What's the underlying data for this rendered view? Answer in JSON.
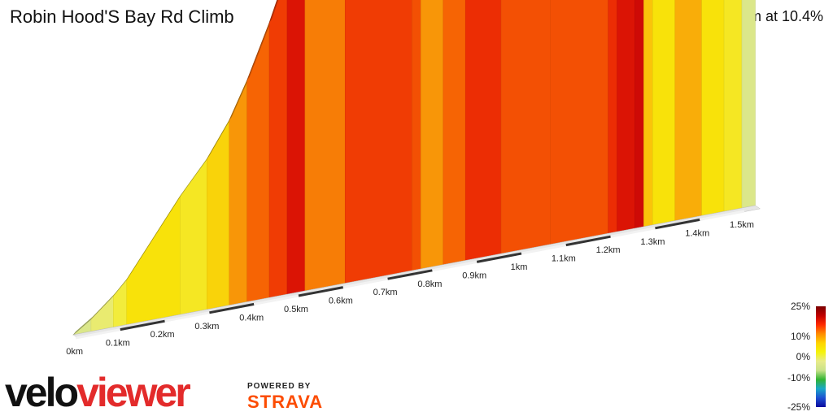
{
  "header": {
    "title": "Robin Hood'S Bay Rd Climb",
    "summary": "1.5 km at 10.4%"
  },
  "chart_data": {
    "type": "area",
    "title": "Robin Hood'S Bay Rd Climb",
    "xlabel": "",
    "ylabel": "",
    "x_tick_labels": [
      "0km",
      "0.1km",
      "0.2km",
      "0.3km",
      "0.4km",
      "0.5km",
      "0.6km",
      "0.7km",
      "0.8km",
      "0.9km",
      "1km",
      "1.1km",
      "1.2km",
      "1.3km",
      "1.4km",
      "1.5km"
    ],
    "segments": [
      {
        "start_km": 0.0,
        "end_km": 0.04,
        "grade_pct": 4
      },
      {
        "start_km": 0.04,
        "end_km": 0.09,
        "grade_pct": 5
      },
      {
        "start_km": 0.09,
        "end_km": 0.12,
        "grade_pct": 6
      },
      {
        "start_km": 0.12,
        "end_km": 0.24,
        "grade_pct": 8
      },
      {
        "start_km": 0.24,
        "end_km": 0.3,
        "grade_pct": 7
      },
      {
        "start_km": 0.3,
        "end_km": 0.35,
        "grade_pct": 9
      },
      {
        "start_km": 0.35,
        "end_km": 0.39,
        "grade_pct": 12
      },
      {
        "start_km": 0.39,
        "end_km": 0.44,
        "grade_pct": 14
      },
      {
        "start_km": 0.44,
        "end_km": 0.48,
        "grade_pct": 16
      },
      {
        "start_km": 0.48,
        "end_km": 0.52,
        "grade_pct": 19
      },
      {
        "start_km": 0.52,
        "end_km": 0.61,
        "grade_pct": 13
      },
      {
        "start_km": 0.61,
        "end_km": 0.76,
        "grade_pct": 16
      },
      {
        "start_km": 0.76,
        "end_km": 0.78,
        "grade_pct": 15
      },
      {
        "start_km": 0.78,
        "end_km": 0.83,
        "grade_pct": 12
      },
      {
        "start_km": 0.83,
        "end_km": 0.88,
        "grade_pct": 14
      },
      {
        "start_km": 0.88,
        "end_km": 0.96,
        "grade_pct": 17
      },
      {
        "start_km": 0.96,
        "end_km": 1.07,
        "grade_pct": 15
      },
      {
        "start_km": 1.07,
        "end_km": 1.2,
        "grade_pct": 15
      },
      {
        "start_km": 1.2,
        "end_km": 1.22,
        "grade_pct": 17
      },
      {
        "start_km": 1.22,
        "end_km": 1.26,
        "grade_pct": 19
      },
      {
        "start_km": 1.26,
        "end_km": 1.28,
        "grade_pct": 20
      },
      {
        "start_km": 1.28,
        "end_km": 1.3,
        "grade_pct": 10
      },
      {
        "start_km": 1.3,
        "end_km": 1.35,
        "grade_pct": 8
      },
      {
        "start_km": 1.35,
        "end_km": 1.41,
        "grade_pct": 11
      },
      {
        "start_km": 1.41,
        "end_km": 1.46,
        "grade_pct": 8
      },
      {
        "start_km": 1.46,
        "end_km": 1.5,
        "grade_pct": 7
      },
      {
        "start_km": 1.5,
        "end_km": 1.53,
        "grade_pct": 4
      }
    ],
    "legend": {
      "title": "",
      "ticks": [
        "25%",
        "10%",
        "0%",
        "-10%",
        "-25%"
      ],
      "colors": [
        "#7a0000",
        "#c00000",
        "#ff2a00",
        "#ff8c00",
        "#ffd400",
        "#f4f40a",
        "#e8eb8a",
        "#c8e28a",
        "#32b432",
        "#1aa8c8",
        "#1e50d2",
        "#0a0a9e"
      ]
    }
  },
  "branding": {
    "logo_velo": "velo",
    "logo_viewer": "viewer",
    "powered_by": "POWERED BY",
    "strava": "STRAVA"
  }
}
